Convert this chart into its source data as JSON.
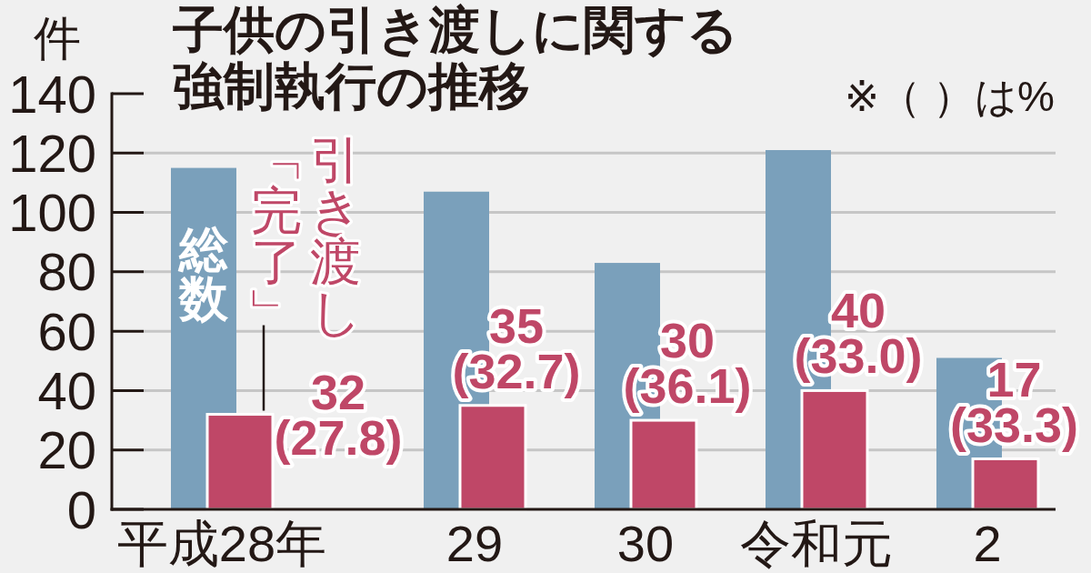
{
  "chart_data": {
    "type": "bar",
    "title": "子供の引き渡しに関する強制執行の推移",
    "ylabel": "件",
    "annotations": [
      "※（ ）は%"
    ],
    "categories": [
      "平成28年",
      "29",
      "30",
      "令和元",
      "2"
    ],
    "series": [
      {
        "name": "総数",
        "color": "#7aa0bb",
        "values": [
          115,
          107,
          83,
          121,
          51
        ]
      },
      {
        "name": "引き渡し「完了」",
        "color": "#bf4767",
        "values": [
          32,
          35,
          30,
          40,
          17
        ],
        "value_labels": [
          "32\n(27.8)",
          "35\n(32.7)",
          "30\n(36.1)",
          "40\n(33.0)",
          "17\n(33.3)"
        ]
      }
    ],
    "ylim": [
      0,
      140
    ],
    "yticks": [
      0,
      20,
      40,
      60,
      80,
      100,
      120,
      140
    ],
    "grid": "y"
  }
}
